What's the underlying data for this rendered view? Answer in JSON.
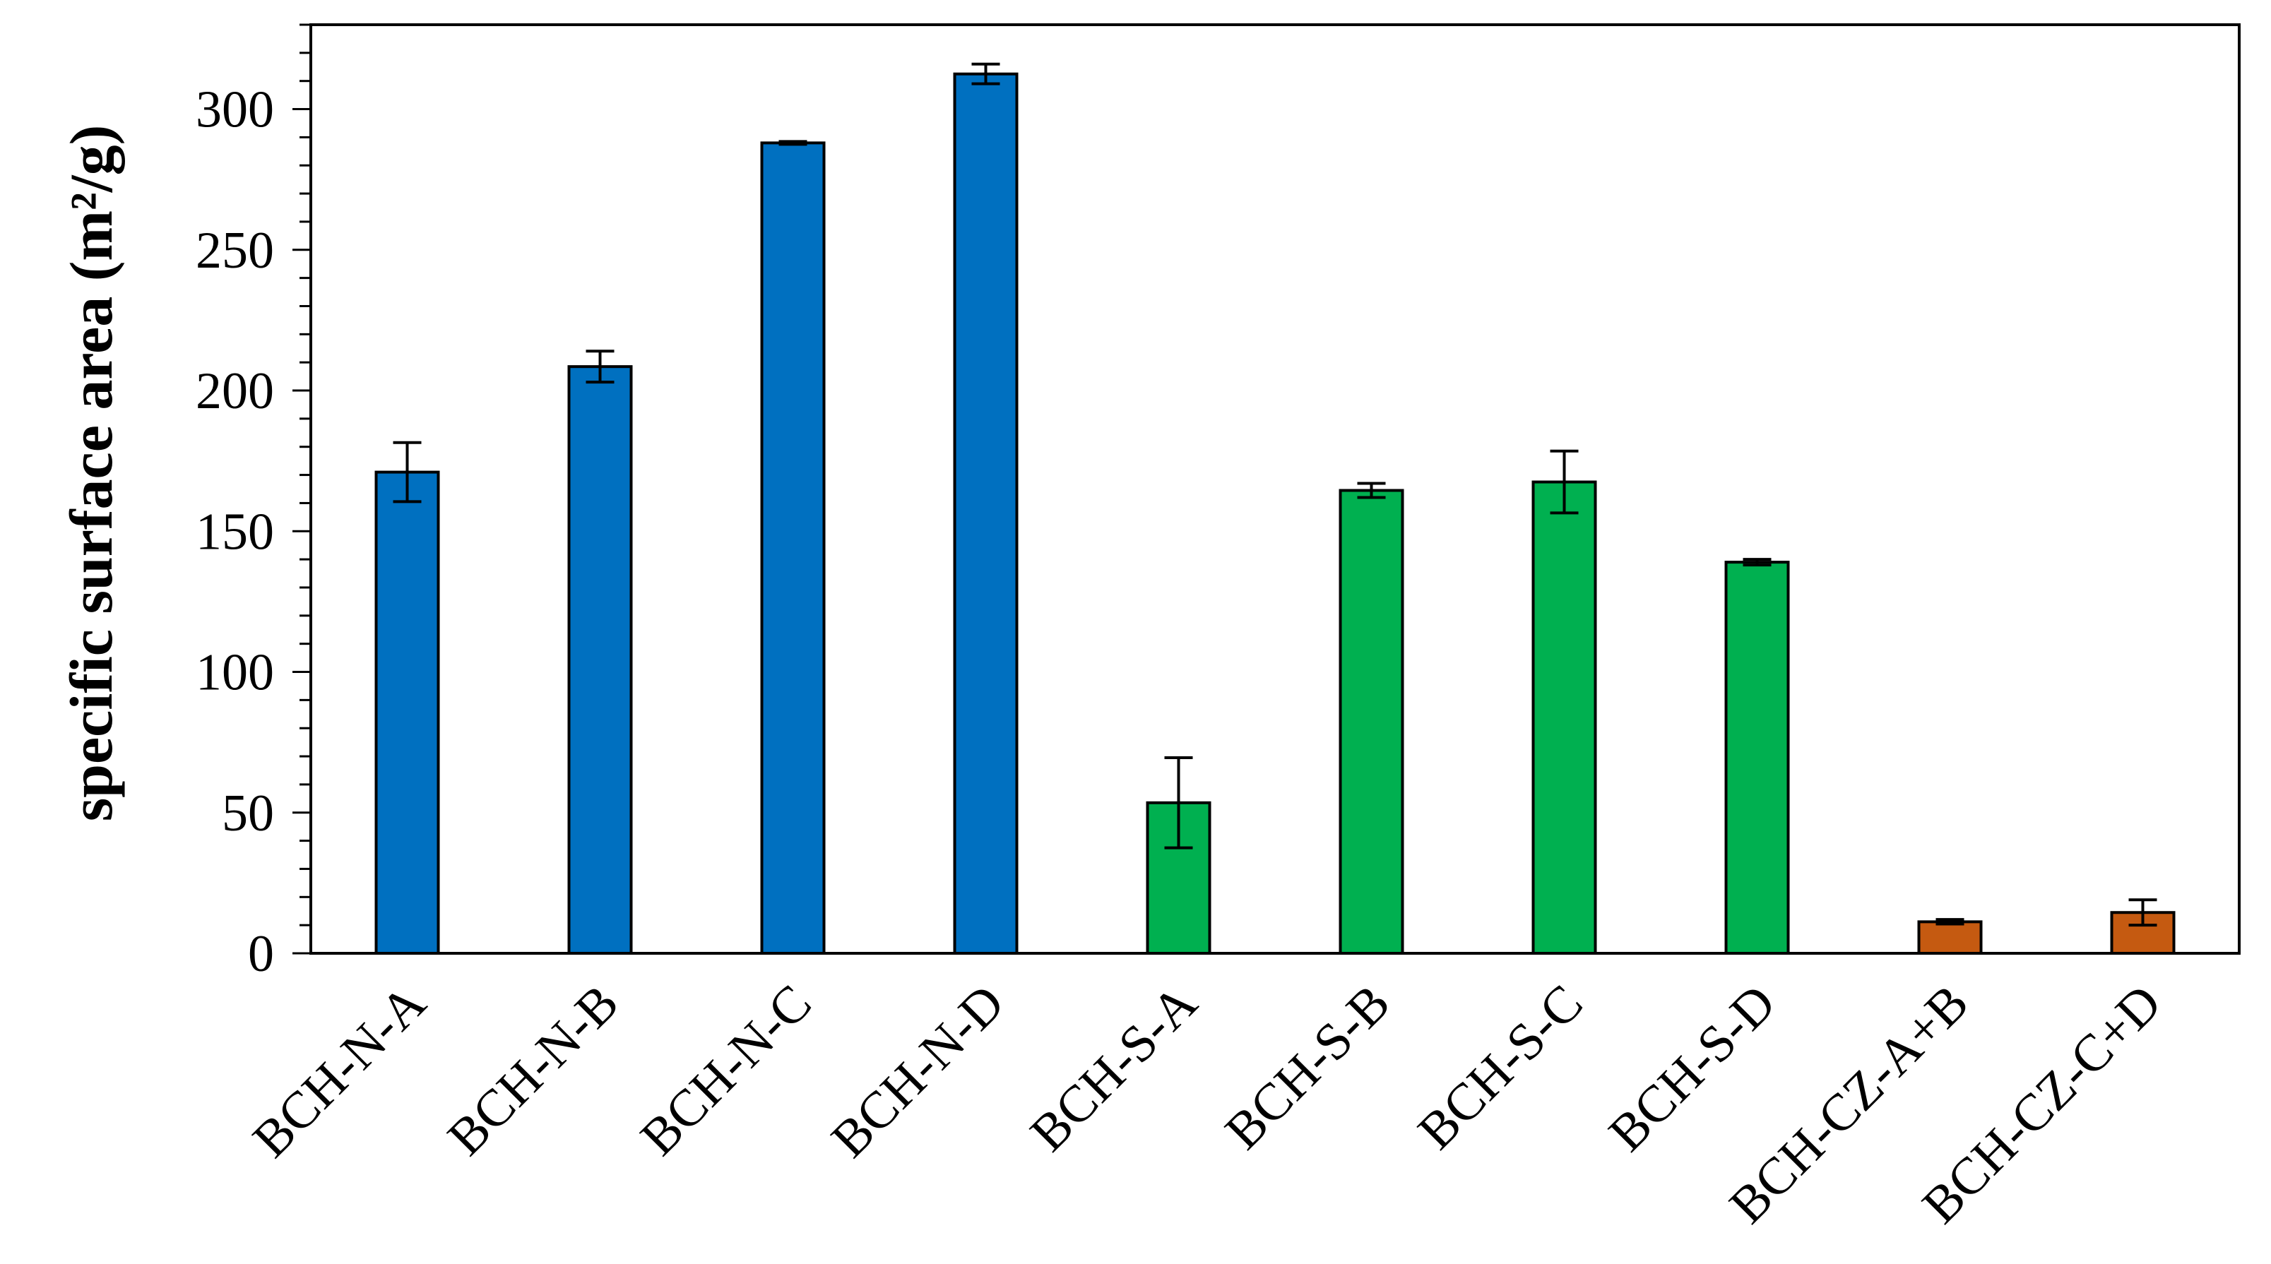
{
  "chart_data": {
    "type": "bar",
    "title": "",
    "xlabel": "",
    "ylabel": "specific surface area (m²/g)",
    "ylim": [
      0,
      330
    ],
    "yticks": [
      0,
      50,
      100,
      150,
      200,
      250,
      300
    ],
    "grid": false,
    "legend": "none",
    "categories": [
      "BCH-N-A",
      "BCH-N-B",
      "BCH-N-C",
      "BCH-N-D",
      "BCH-S-A",
      "BCH-S-B",
      "BCH-S-C",
      "BCH-S-D",
      "BCH-CZ-A+B",
      "BCH-CZ-C+D"
    ],
    "values": [
      171,
      208.5,
      288,
      312.5,
      53.5,
      164.5,
      167.5,
      139,
      11.2,
      14.5
    ],
    "error": [
      10.5,
      5.5,
      0.5,
      3.5,
      16,
      2.5,
      11,
      1,
      0.8,
      4.5
    ],
    "bar_colors": [
      "#0070C0",
      "#0070C0",
      "#0070C0",
      "#0070C0",
      "#00B050",
      "#00B050",
      "#00B050",
      "#00B050",
      "#C55A11",
      "#C55A11"
    ]
  }
}
